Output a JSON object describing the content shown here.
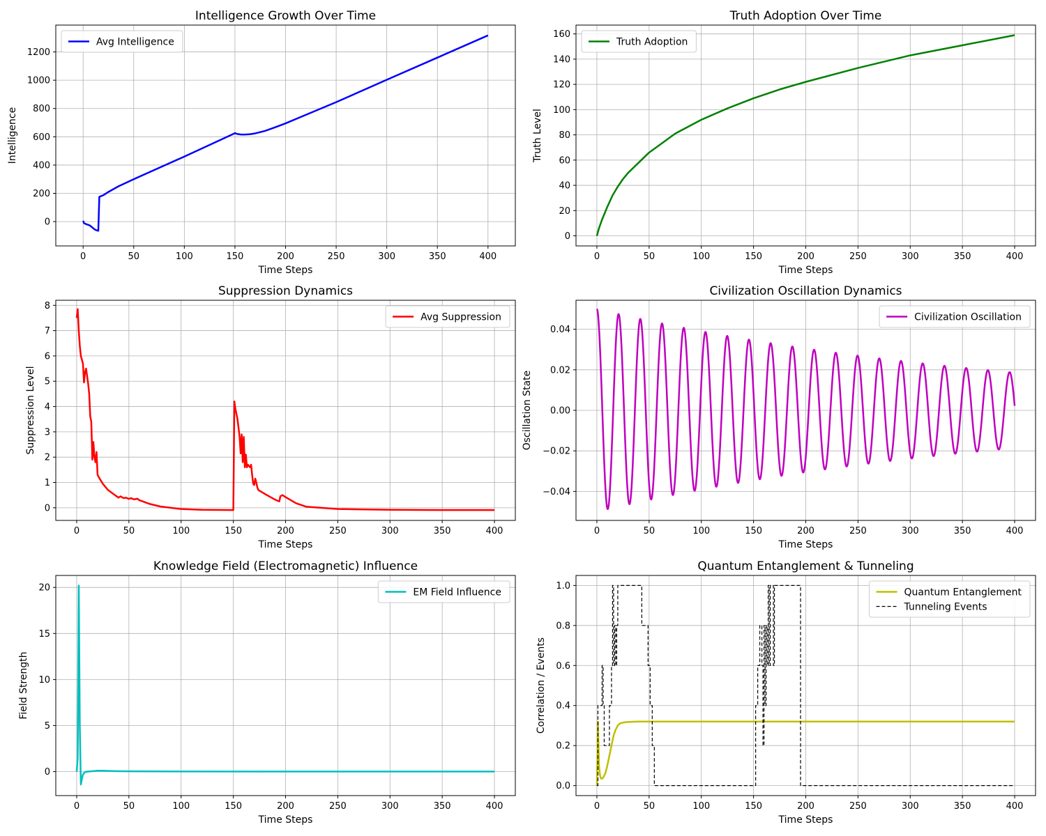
{
  "chart_data": [
    {
      "id": "intel",
      "type": "line",
      "title": "Intelligence Growth Over Time",
      "xlabel": "Time Steps",
      "ylabel": "Intelligence",
      "xlim": [
        -27,
        427
      ],
      "ylim": [
        -172,
        1390
      ],
      "xticks": [
        0,
        50,
        100,
        150,
        200,
        250,
        300,
        350,
        400
      ],
      "yticks": [
        0,
        200,
        400,
        600,
        800,
        1000,
        1200
      ],
      "legend": "upper-left",
      "grid": true,
      "series": [
        {
          "name": "Avg Intelligence",
          "color": "#0000ff",
          "width": 2.5,
          "dash": "",
          "x": [
            0,
            1,
            3,
            6,
            8,
            10,
            12,
            14,
            15,
            16,
            20,
            25,
            35,
            50,
            100,
            149,
            150,
            152,
            156,
            160,
            165,
            170,
            180,
            190,
            200,
            220,
            250,
            300,
            350,
            400
          ],
          "y": [
            6,
            -12,
            -18,
            -25,
            -35,
            -47,
            -58,
            -63,
            -65,
            175,
            187,
            210,
            250,
            300,
            460,
            622,
            626,
            620,
            616,
            616,
            618,
            624,
            642,
            668,
            695,
            755,
            845,
            1003,
            1160,
            1317
          ]
        }
      ]
    },
    {
      "id": "truth",
      "type": "line",
      "title": "Truth Adoption Over Time",
      "xlabel": "Time Steps",
      "ylabel": "Truth Level",
      "xlim": [
        -20,
        420
      ],
      "ylim": [
        -8,
        167
      ],
      "xticks": [
        0,
        50,
        100,
        150,
        200,
        250,
        300,
        350,
        400
      ],
      "yticks": [
        0,
        20,
        40,
        60,
        80,
        100,
        120,
        140,
        160
      ],
      "legend": "upper-left",
      "grid": true,
      "series": [
        {
          "name": "Truth Adoption",
          "color": "#008000",
          "width": 2.5,
          "dash": "",
          "x": [
            0,
            2,
            5,
            10,
            15,
            20,
            25,
            30,
            40,
            50,
            60,
            75,
            100,
            125,
            150,
            175,
            200,
            250,
            300,
            350,
            400
          ],
          "y": [
            0,
            6,
            13,
            23,
            32,
            39,
            45,
            50,
            58,
            66,
            72,
            81,
            92,
            101,
            109,
            116,
            122,
            133,
            143,
            151,
            159
          ]
        }
      ]
    },
    {
      "id": "supp",
      "type": "line",
      "title": "Suppression Dynamics",
      "xlabel": "Time Steps",
      "ylabel": "Suppression Level",
      "xlim": [
        -20,
        420
      ],
      "ylim": [
        -0.5,
        8.2
      ],
      "xticks": [
        0,
        50,
        100,
        150,
        200,
        250,
        300,
        350,
        400
      ],
      "yticks": [
        0,
        1,
        2,
        3,
        4,
        5,
        6,
        7,
        8
      ],
      "legend": "upper-right",
      "grid": true,
      "series": [
        {
          "name": "Avg Suppression",
          "color": "#ff0000",
          "width": 2.5,
          "dash": "",
          "x": [
            0,
            1,
            2,
            3,
            4,
            5,
            6,
            7,
            8,
            9,
            10,
            11,
            12,
            13,
            14,
            15,
            16,
            17,
            18,
            19,
            20,
            22,
            25,
            30,
            35,
            40,
            42,
            45,
            47,
            50,
            52,
            55,
            58,
            60,
            70,
            80,
            100,
            120,
            149,
            150,
            151,
            152,
            154,
            156,
            157,
            158,
            159,
            160,
            161,
            162,
            163,
            164,
            165,
            166,
            167,
            168,
            169,
            170,
            171,
            172,
            173,
            174,
            180,
            190,
            194,
            195,
            197,
            200,
            210,
            220,
            250,
            300,
            350,
            400
          ],
          "y": [
            7.5,
            7.85,
            7.0,
            6.4,
            6.0,
            5.85,
            5.7,
            4.95,
            5.35,
            5.5,
            5.2,
            4.9,
            4.5,
            3.6,
            3.4,
            1.9,
            2.6,
            2.0,
            1.8,
            2.2,
            1.3,
            1.15,
            0.95,
            0.7,
            0.55,
            0.4,
            0.45,
            0.38,
            0.4,
            0.35,
            0.38,
            0.33,
            0.36,
            0.3,
            0.15,
            0.05,
            -0.05,
            -0.08,
            -0.09,
            -0.09,
            4.2,
            3.9,
            3.5,
            2.8,
            2.15,
            2.9,
            1.8,
            2.8,
            1.6,
            2.1,
            1.6,
            1.7,
            1.65,
            1.6,
            1.7,
            1.3,
            0.95,
            0.9,
            1.15,
            1.0,
            0.8,
            0.7,
            0.55,
            0.32,
            0.25,
            0.45,
            0.5,
            0.42,
            0.18,
            0.04,
            -0.05,
            -0.08,
            -0.09,
            -0.09
          ]
        }
      ]
    },
    {
      "id": "osc",
      "type": "line",
      "title": "Civilization Oscillation Dynamics",
      "xlabel": "Time Steps",
      "ylabel": "Oscillation State",
      "xlim": [
        -20,
        420
      ],
      "ylim": [
        -0.0543,
        0.0543
      ],
      "xticks": [
        0,
        50,
        100,
        150,
        200,
        250,
        300,
        350,
        400
      ],
      "yticks": [
        -0.04,
        -0.02,
        0.0,
        0.02,
        0.04
      ],
      "ytick_labels": [
        "−0.04",
        "−0.02",
        "0.00",
        "0.02",
        "0.04"
      ],
      "legend": "upper-right",
      "grid": true,
      "series": [
        {
          "name": "Civilization Oscillation",
          "color": "#bf00bf",
          "width": 2.5,
          "dash": "",
          "function": {
            "form": "damped-cosine",
            "amplitude0": 0.05,
            "decay": 0.00247,
            "period": 20.8,
            "samples": 1600,
            "x_end": 400
          }
        }
      ]
    },
    {
      "id": "em",
      "type": "line",
      "title": "Knowledge Field (Electromagnetic) Influence",
      "xlabel": "Time Steps",
      "ylabel": "Field Strength",
      "xlim": [
        -20,
        420
      ],
      "ylim": [
        -2.6,
        21.3
      ],
      "xticks": [
        0,
        50,
        100,
        150,
        200,
        250,
        300,
        350,
        400
      ],
      "yticks": [
        0,
        5,
        10,
        15,
        20
      ],
      "legend": "upper-right",
      "grid": true,
      "series": [
        {
          "name": "EM Field Influence",
          "color": "#00bfbf",
          "width": 2.5,
          "dash": "",
          "x": [
            0,
            1,
            2,
            3,
            4,
            5,
            6,
            8,
            10,
            15,
            20,
            25,
            30,
            40,
            50,
            100,
            200,
            300,
            400
          ],
          "y": [
            0,
            1.5,
            20.2,
            5.0,
            -1.4,
            -0.8,
            -0.3,
            -0.05,
            0.0,
            0.05,
            0.1,
            0.1,
            0.08,
            0.05,
            0.04,
            0.02,
            0.01,
            0.01,
            0.01
          ]
        }
      ]
    },
    {
      "id": "quantum",
      "type": "line",
      "title": "Quantum Entanglement & Tunneling",
      "xlabel": "Time Steps",
      "ylabel": "Correlation / Events",
      "xlim": [
        -20,
        420
      ],
      "ylim": [
        -0.05,
        1.05
      ],
      "xticks": [
        0,
        50,
        100,
        150,
        200,
        250,
        300,
        350,
        400
      ],
      "yticks": [
        0.0,
        0.2,
        0.4,
        0.6,
        0.8,
        1.0
      ],
      "ytick_labels": [
        "0.0",
        "0.2",
        "0.4",
        "0.6",
        "0.8",
        "1.0"
      ],
      "legend": "upper-right",
      "grid": true,
      "series": [
        {
          "name": "Quantum Entanglement",
          "color": "#bfbf00",
          "width": 2.5,
          "dash": "",
          "x": [
            0,
            1,
            2,
            3,
            4,
            5,
            6,
            8,
            10,
            12,
            14,
            16,
            18,
            20,
            22,
            25,
            30,
            40,
            50,
            100,
            200,
            300,
            400
          ],
          "y": [
            0,
            0.32,
            0.1,
            0.05,
            0.035,
            0.035,
            0.04,
            0.06,
            0.1,
            0.15,
            0.2,
            0.25,
            0.28,
            0.3,
            0.31,
            0.315,
            0.318,
            0.32,
            0.32,
            0.32,
            0.32,
            0.32,
            0.32
          ]
        },
        {
          "name": "Tunneling Events",
          "color": "#000000",
          "width": 1.2,
          "dash": "5,3",
          "step": true,
          "x": [
            0,
            1,
            3,
            5,
            6,
            7,
            10,
            12,
            14,
            15,
            16,
            17,
            18,
            19,
            20,
            22,
            24,
            26,
            28,
            30,
            40,
            43,
            46,
            49,
            51,
            53,
            55,
            57,
            60,
            100,
            150,
            152,
            154,
            156,
            158,
            159,
            160,
            161,
            162,
            163,
            164,
            165,
            166,
            167,
            168,
            169,
            170,
            171,
            172,
            173,
            174,
            175,
            190,
            193,
            195,
            197,
            200,
            250,
            300,
            350,
            400
          ],
          "y": [
            0,
            0.4,
            0.4,
            0.6,
            0.4,
            0.2,
            0.2,
            0.4,
            0.6,
            1.0,
            0.6,
            0.8,
            0.6,
            0.8,
            1.0,
            1.0,
            1.0,
            1.0,
            1.0,
            1.0,
            1.0,
            0.8,
            0.8,
            0.6,
            0.4,
            0.2,
            0.0,
            0.0,
            0.0,
            0.0,
            0.0,
            0.4,
            0.6,
            0.8,
            0.6,
            0.2,
            0.8,
            0.4,
            0.8,
            0.6,
            1.0,
            0.6,
            1.0,
            1.0,
            1.0,
            0.6,
            1.0,
            1.0,
            1.0,
            1.0,
            1.0,
            1.0,
            1.0,
            1.0,
            0.0,
            0.0,
            0.0,
            0.0,
            0.0,
            0.0,
            0.0
          ]
        }
      ]
    }
  ]
}
